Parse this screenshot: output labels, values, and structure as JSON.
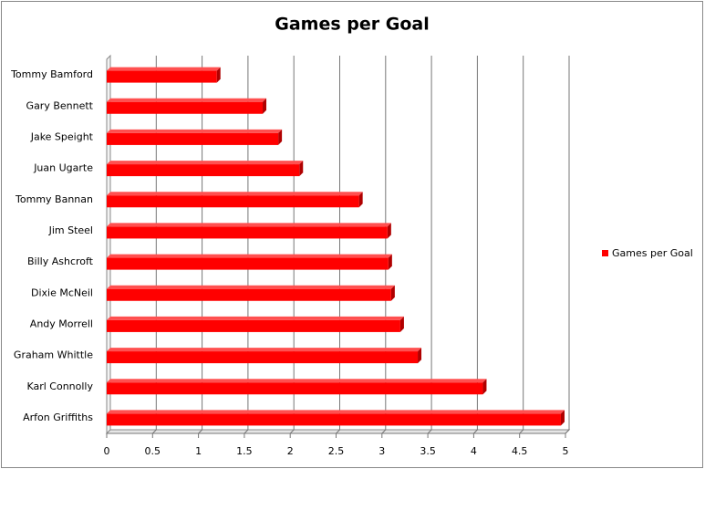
{
  "chart_data": {
    "type": "bar",
    "orientation": "horizontal",
    "title": "Games per Goal",
    "categories": [
      "Tommy  Bamford",
      "Gary Bennett",
      "Jake Speight",
      "Juan Ugarte",
      "Tommy  Bannan",
      "Jim Steel",
      "Billy Ashcroft",
      "Dixie McNeil",
      "Andy Morrell",
      "Graham  Whittle",
      "Karl Connolly",
      "Arfon Griffiths"
    ],
    "series": [
      {
        "name": "Games per Goal",
        "color": "#ff0000",
        "values": [
          1.2,
          1.7,
          1.87,
          2.1,
          2.75,
          3.06,
          3.07,
          3.1,
          3.2,
          3.39,
          4.1,
          4.95
        ]
      }
    ],
    "xlim": [
      0,
      5
    ],
    "xticks": [
      0,
      0.5,
      1,
      1.5,
      2,
      2.5,
      3,
      3.5,
      4,
      4.5,
      5
    ],
    "grid": true,
    "legend": "right"
  }
}
